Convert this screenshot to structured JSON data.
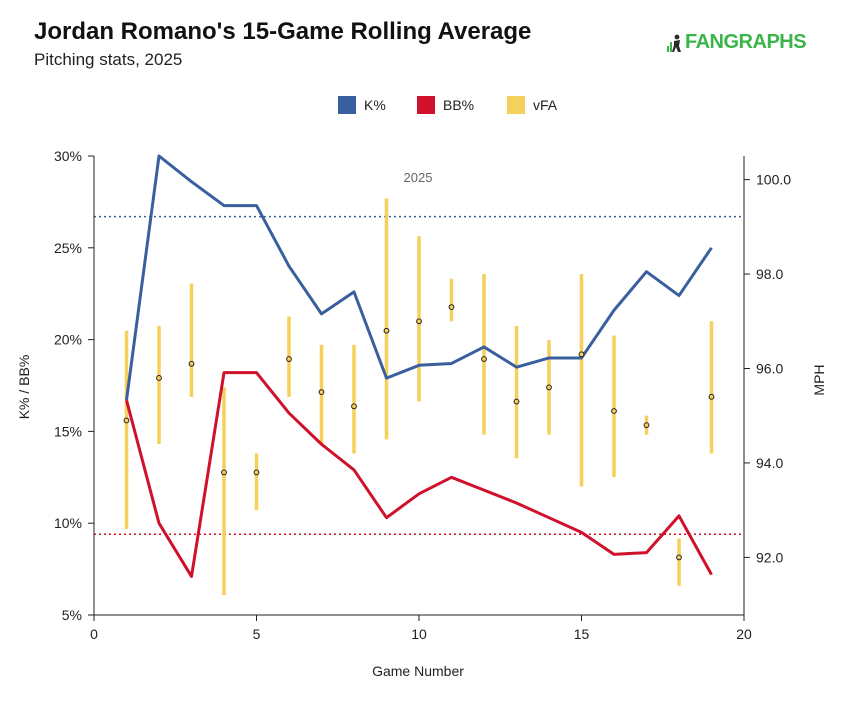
{
  "header": {
    "title": "Jordan Romano's 15-Game Rolling Average",
    "subtitle": "Pitching stats, 2025",
    "logo_text": "FANGRAPHS"
  },
  "colors": {
    "k_pct": "#3a5f9e",
    "bb_pct": "#d0112b",
    "vfa": "#f5d05a",
    "logo": "#3cb44a"
  },
  "icons": {
    "logo": "fangraphs-logo-icon"
  },
  "chart_data": {
    "type": "line",
    "season_label": "2025",
    "xlabel": "Game Number",
    "ylabel_left": "K% / BB%",
    "ylabel_right": "MPH",
    "xlim": [
      0,
      20
    ],
    "xticks": [
      "0",
      "5",
      "10",
      "15",
      "20"
    ],
    "ylim_left": [
      5,
      30
    ],
    "yticks_left": [
      "5%",
      "10%",
      "15%",
      "20%",
      "25%",
      "30%"
    ],
    "ylim_right": [
      90.78,
      100.5
    ],
    "yticks_right": [
      "92.0",
      "94.0",
      "96.0",
      "98.0",
      "100.0"
    ],
    "legend": {
      "placement": "top-center"
    },
    "reference_lines": {
      "k_pct_avg": 26.7,
      "bb_pct_avg": 9.4
    },
    "series": [
      {
        "name": "K%",
        "axis": "left",
        "x": [
          1,
          2,
          3,
          4,
          5,
          6,
          7,
          8,
          9,
          10,
          11,
          12,
          13,
          14,
          15,
          16,
          17,
          18,
          19
        ],
        "values": [
          16.7,
          30.0,
          28.6,
          27.3,
          27.3,
          24.0,
          21.4,
          22.6,
          17.9,
          18.6,
          18.7,
          19.6,
          18.5,
          19.0,
          19.0,
          21.6,
          23.7,
          22.4,
          25.0
        ]
      },
      {
        "name": "BB%",
        "axis": "left",
        "x": [
          1,
          2,
          3,
          4,
          5,
          6,
          7,
          8,
          9,
          10,
          11,
          12,
          13,
          14,
          15,
          16,
          17,
          18,
          19
        ],
        "values": [
          16.7,
          10.0,
          7.1,
          18.2,
          18.2,
          16.0,
          14.3,
          12.9,
          10.3,
          11.6,
          12.5,
          11.8,
          11.1,
          10.3,
          9.5,
          8.3,
          8.4,
          10.4,
          7.2
        ]
      },
      {
        "name": "vFA",
        "axis": "right",
        "type": "range",
        "x": [
          1,
          2,
          3,
          4,
          5,
          6,
          7,
          8,
          9,
          10,
          11,
          12,
          13,
          14,
          15,
          16,
          17,
          18,
          19
        ],
        "values": [
          94.9,
          95.8,
          96.1,
          93.8,
          93.8,
          96.2,
          95.5,
          95.2,
          96.8,
          97.0,
          97.3,
          96.2,
          95.3,
          95.6,
          96.3,
          95.1,
          94.8,
          92.0,
          95.4
        ],
        "low": [
          92.6,
          94.4,
          95.4,
          91.2,
          93.0,
          95.4,
          94.4,
          94.2,
          94.5,
          95.3,
          97.0,
          94.6,
          94.1,
          94.6,
          93.5,
          93.7,
          94.6,
          91.4,
          94.2
        ],
        "high": [
          96.8,
          96.9,
          97.8,
          95.6,
          94.2,
          97.1,
          96.5,
          96.5,
          99.6,
          98.8,
          97.9,
          98.0,
          96.9,
          96.6,
          98.0,
          96.7,
          95.0,
          92.4,
          97.0
        ]
      }
    ]
  }
}
